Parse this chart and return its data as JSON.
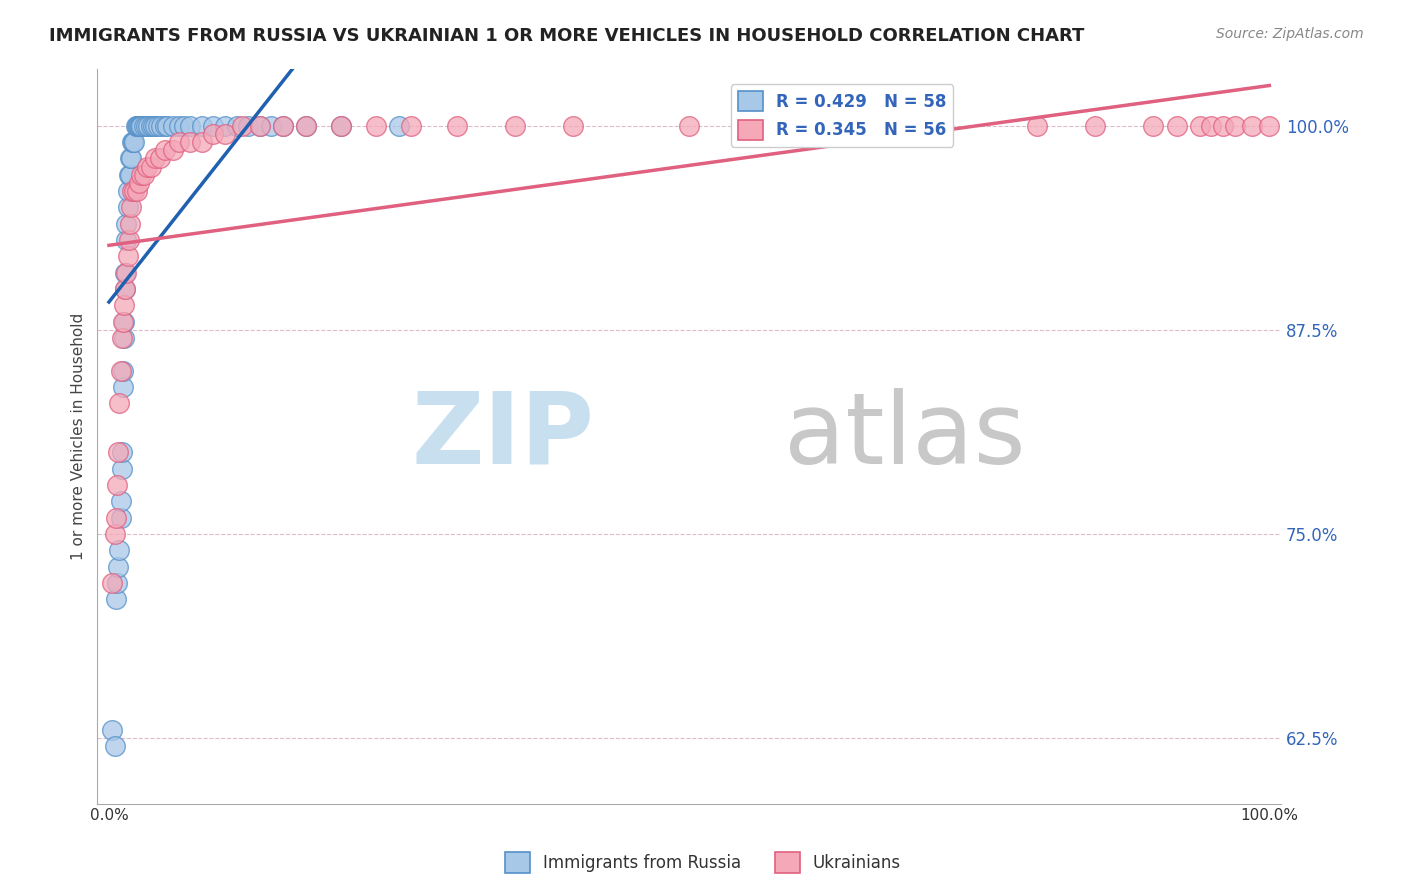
{
  "title": "IMMIGRANTS FROM RUSSIA VS UKRAINIAN 1 OR MORE VEHICLES IN HOUSEHOLD CORRELATION CHART",
  "source": "Source: ZipAtlas.com",
  "ylabel": "1 or more Vehicles in Household",
  "xlabel": "",
  "xlim": [
    0.0,
    1.0
  ],
  "ylim": [
    0.585,
    1.035
  ],
  "yticks": [
    0.625,
    0.75,
    0.875,
    1.0
  ],
  "ytick_labels": [
    "62.5%",
    "75.0%",
    "87.5%",
    "100.0%"
  ],
  "xticks": [
    0.0,
    0.1,
    0.2,
    0.3,
    0.4,
    0.5,
    0.6,
    0.7,
    0.8,
    0.9,
    1.0
  ],
  "xtick_labels": [
    "0.0%",
    "",
    "",
    "",
    "",
    "",
    "",
    "",
    "",
    "",
    "100.0%"
  ],
  "blue_color": "#a8c8e8",
  "pink_color": "#f4a8b8",
  "blue_edge_color": "#5590c8",
  "pink_edge_color": "#e06080",
  "blue_line_color": "#2060b0",
  "pink_line_color": "#e06080",
  "legend_text_color": "#3366bb",
  "R_blue": 0.429,
  "N_blue": 58,
  "R_pink": 0.345,
  "N_pink": 56,
  "blue_x": [
    0.003,
    0.005,
    0.006,
    0.007,
    0.008,
    0.009,
    0.01,
    0.01,
    0.011,
    0.011,
    0.012,
    0.012,
    0.013,
    0.013,
    0.014,
    0.014,
    0.015,
    0.015,
    0.016,
    0.016,
    0.017,
    0.018,
    0.018,
    0.019,
    0.02,
    0.021,
    0.022,
    0.023,
    0.024,
    0.025,
    0.026,
    0.027,
    0.028,
    0.03,
    0.032,
    0.034,
    0.036,
    0.038,
    0.04,
    0.042,
    0.045,
    0.048,
    0.05,
    0.055,
    0.06,
    0.065,
    0.07,
    0.08,
    0.09,
    0.1,
    0.11,
    0.12,
    0.13,
    0.14,
    0.15,
    0.17,
    0.2,
    0.25
  ],
  "blue_y": [
    0.63,
    0.62,
    0.71,
    0.72,
    0.73,
    0.74,
    0.76,
    0.77,
    0.79,
    0.8,
    0.84,
    0.85,
    0.87,
    0.88,
    0.9,
    0.91,
    0.93,
    0.94,
    0.95,
    0.96,
    0.97,
    0.97,
    0.98,
    0.98,
    0.99,
    0.99,
    0.99,
    1.0,
    1.0,
    1.0,
    1.0,
    1.0,
    1.0,
    1.0,
    1.0,
    1.0,
    1.0,
    1.0,
    1.0,
    1.0,
    1.0,
    1.0,
    1.0,
    1.0,
    1.0,
    1.0,
    1.0,
    1.0,
    1.0,
    1.0,
    1.0,
    1.0,
    1.0,
    1.0,
    1.0,
    1.0,
    1.0,
    1.0
  ],
  "pink_x": [
    0.003,
    0.005,
    0.006,
    0.007,
    0.008,
    0.009,
    0.01,
    0.011,
    0.012,
    0.013,
    0.014,
    0.015,
    0.016,
    0.017,
    0.018,
    0.019,
    0.02,
    0.022,
    0.024,
    0.026,
    0.028,
    0.03,
    0.033,
    0.036,
    0.04,
    0.044,
    0.048,
    0.055,
    0.06,
    0.07,
    0.08,
    0.09,
    0.1,
    0.115,
    0.13,
    0.15,
    0.17,
    0.2,
    0.23,
    0.26,
    0.3,
    0.35,
    0.4,
    0.5,
    0.6,
    0.7,
    0.8,
    0.85,
    0.9,
    0.92,
    0.94,
    0.95,
    0.96,
    0.97,
    0.985,
    1.0
  ],
  "pink_y": [
    0.72,
    0.75,
    0.76,
    0.78,
    0.8,
    0.83,
    0.85,
    0.87,
    0.88,
    0.89,
    0.9,
    0.91,
    0.92,
    0.93,
    0.94,
    0.95,
    0.96,
    0.96,
    0.96,
    0.965,
    0.97,
    0.97,
    0.975,
    0.975,
    0.98,
    0.98,
    0.985,
    0.985,
    0.99,
    0.99,
    0.99,
    0.995,
    0.995,
    1.0,
    1.0,
    1.0,
    1.0,
    1.0,
    1.0,
    1.0,
    1.0,
    1.0,
    1.0,
    1.0,
    1.0,
    1.0,
    1.0,
    1.0,
    1.0,
    1.0,
    1.0,
    1.0,
    1.0,
    1.0,
    1.0,
    1.0
  ],
  "watermark_zip": "ZIP",
  "watermark_atlas": "atlas",
  "watermark_color_zip": "#c8dff0",
  "watermark_color_atlas": "#c8c8c8",
  "watermark_fontsize": 72
}
